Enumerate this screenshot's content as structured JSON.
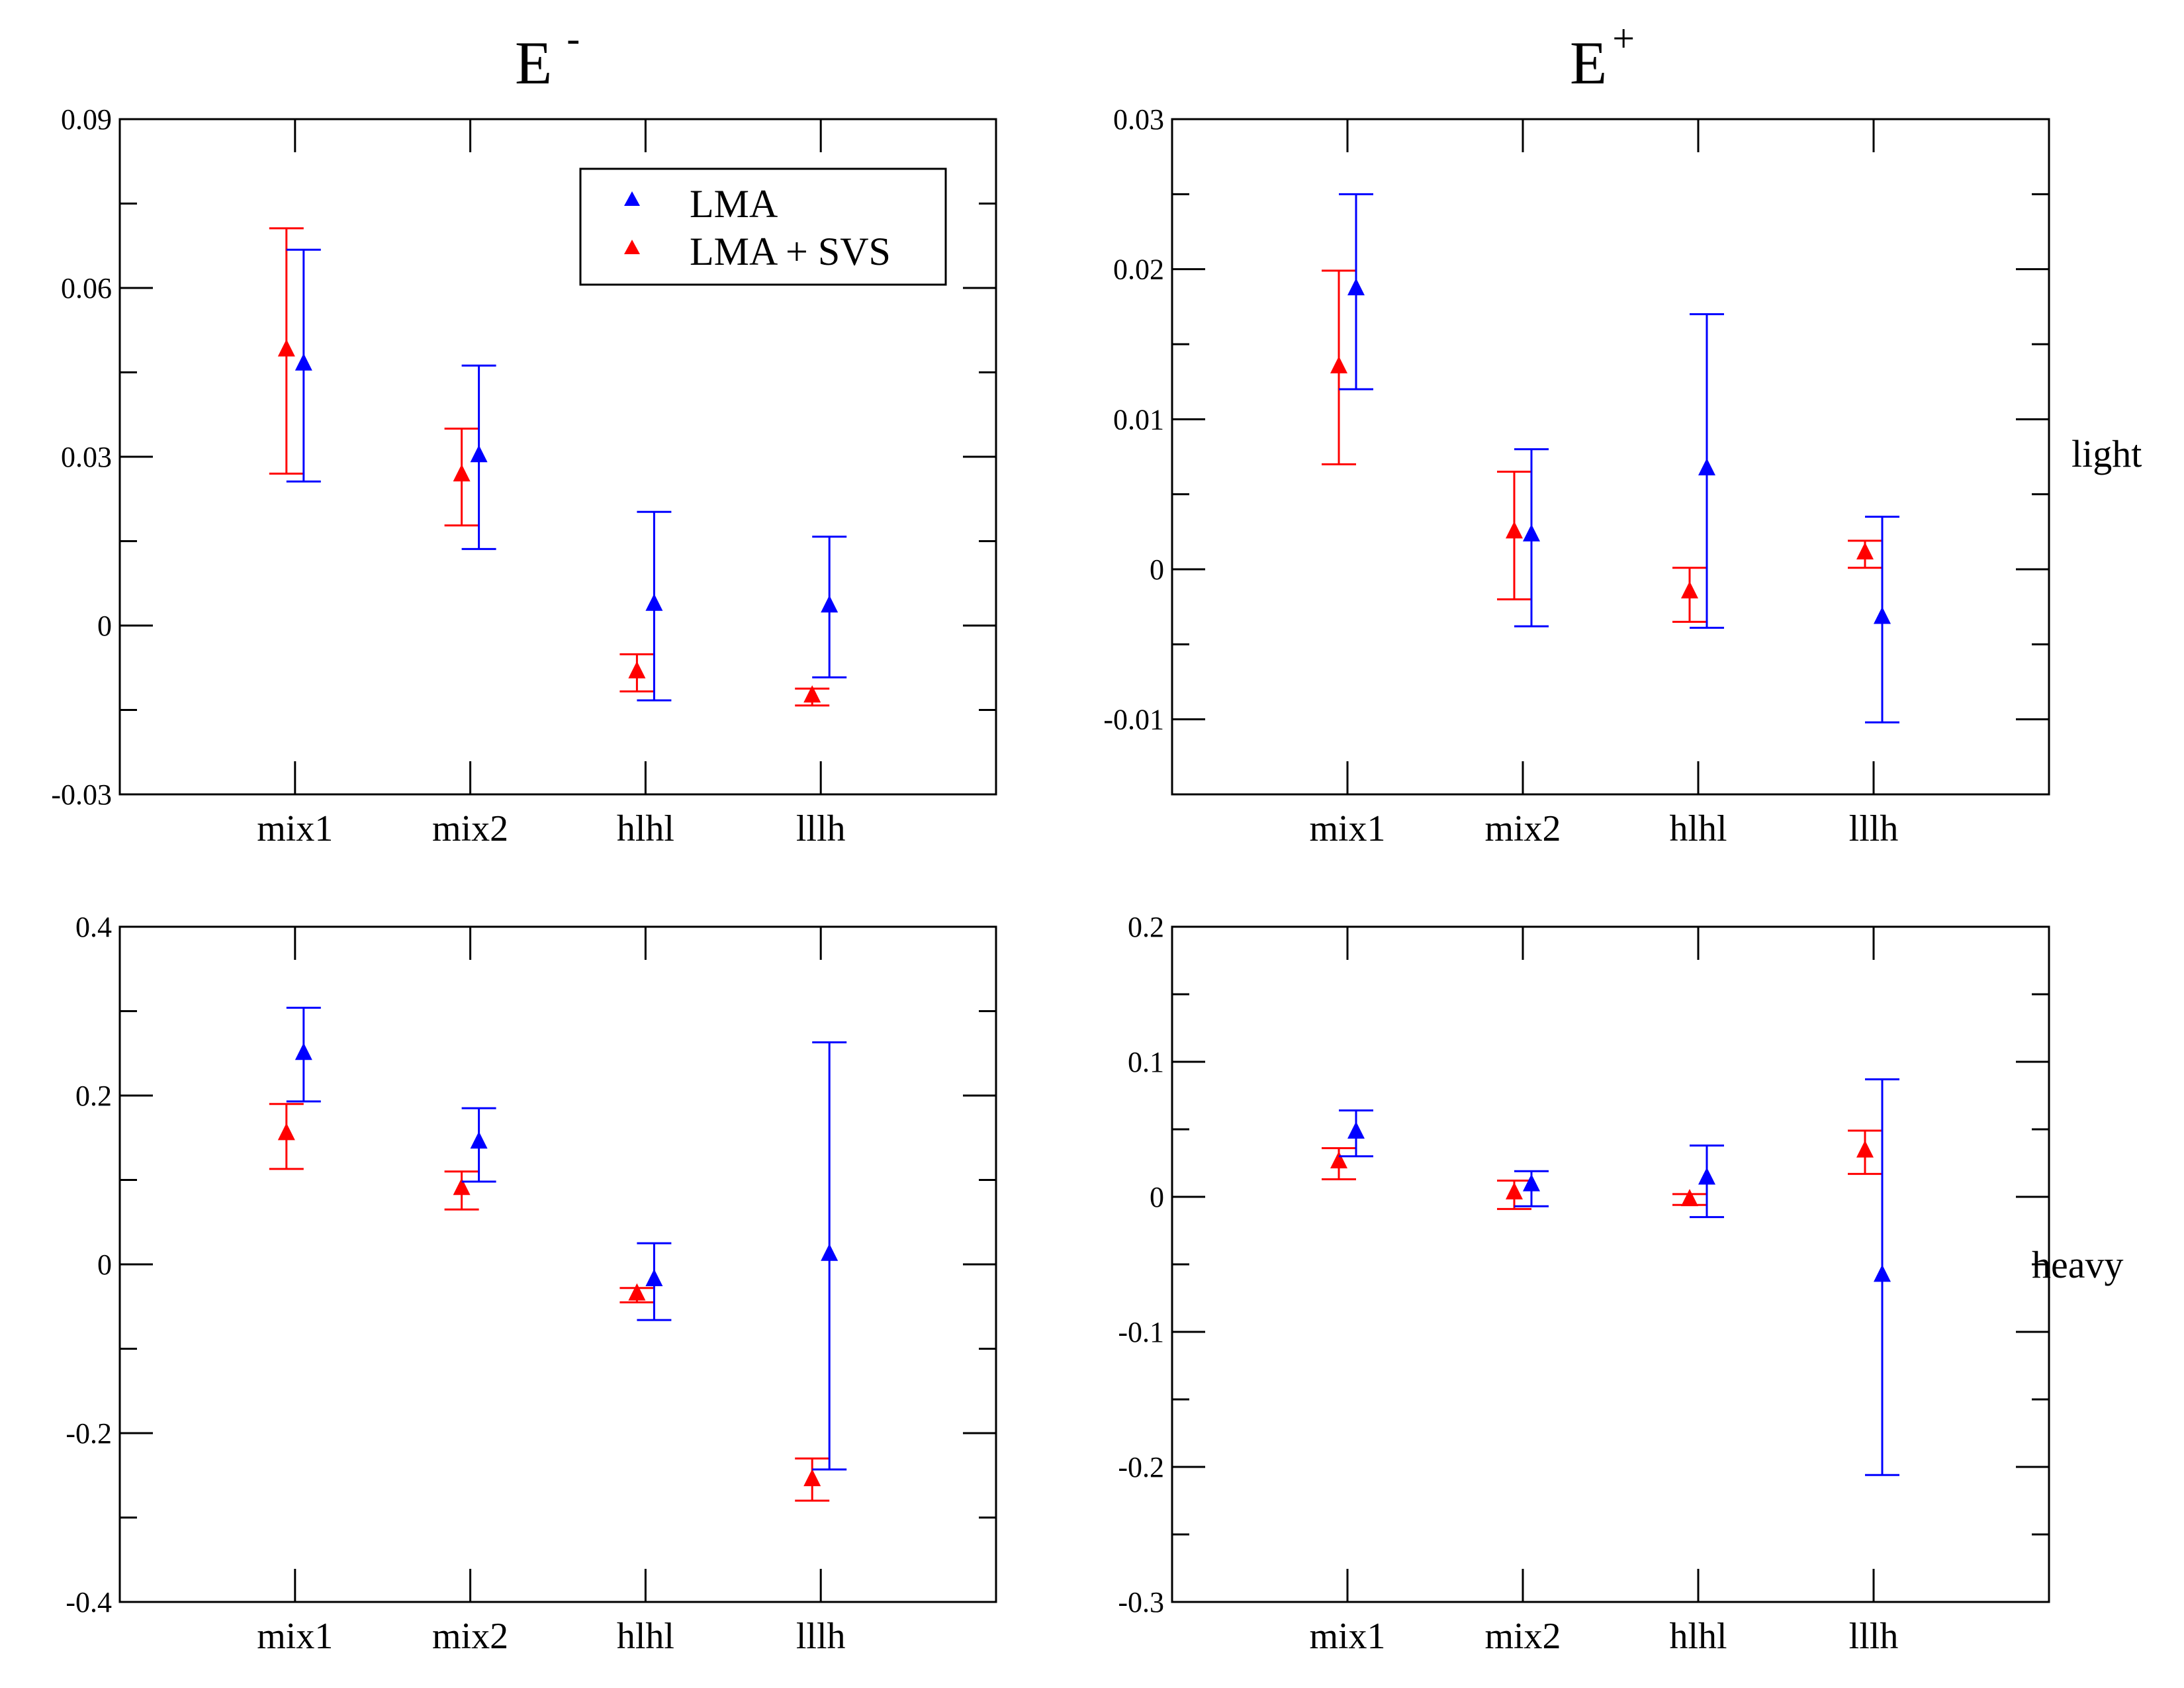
{
  "figure": {
    "column_titles": [
      {
        "base": "E",
        "sup": "-"
      },
      {
        "base": "E",
        "sup": "+"
      }
    ],
    "row_labels": [
      "light",
      "heavy"
    ],
    "legend": [
      {
        "label": "LMA",
        "color": "#0000ff"
      },
      {
        "label": "LMA + SVS",
        "color": "#ff0000"
      }
    ]
  },
  "chart_data": [
    {
      "type": "scatter",
      "panel": "E- light",
      "categories": [
        "mix1",
        "mix2",
        "hlhl",
        "lllh"
      ],
      "ylim": [
        -0.03,
        0.09
      ],
      "yticks": [
        -0.03,
        0,
        0.03,
        0.06,
        0.09
      ],
      "ytick_labels": [
        "-0.03",
        "0",
        "0.03",
        "0.06",
        "0.09"
      ],
      "yminor": 0.015,
      "series": [
        {
          "name": "LMA + SVS",
          "color": "#ff0000",
          "values": [
            0.049,
            0.0268,
            -0.0082,
            -0.0125
          ],
          "err_low": [
            0.027,
            0.0178,
            -0.0117,
            -0.0142
          ],
          "err_high": [
            0.0706,
            0.035,
            -0.0051,
            -0.0112
          ]
        },
        {
          "name": "LMA",
          "color": "#0000ff",
          "values": [
            0.0465,
            0.0302,
            0.0038,
            0.0035
          ],
          "err_low": [
            0.0256,
            0.0136,
            -0.0133,
            -0.0092
          ],
          "err_high": [
            0.0668,
            0.0462,
            0.0202,
            0.0158
          ]
        }
      ]
    },
    {
      "type": "scatter",
      "panel": "E+ light",
      "categories": [
        "mix1",
        "mix2",
        "hlhl",
        "lllh"
      ],
      "ylim": [
        -0.015,
        0.03
      ],
      "yticks": [
        -0.01,
        0,
        0.01,
        0.02,
        0.03
      ],
      "ytick_labels": [
        "-0.01",
        "0",
        "0.01",
        "0.02",
        "0.03"
      ],
      "yminor": 0.005,
      "series": [
        {
          "name": "LMA + SVS",
          "color": "#ff0000",
          "values": [
            0.0135,
            0.0025,
            -0.0015,
            0.0011
          ],
          "err_low": [
            0.007,
            -0.002,
            -0.0035,
            0.0001
          ],
          "err_high": [
            0.0199,
            0.0065,
            0.0001,
            0.0019
          ]
        },
        {
          "name": "LMA",
          "color": "#0000ff",
          "values": [
            0.0187,
            0.0023,
            0.0067,
            -0.0032
          ],
          "err_low": [
            0.012,
            -0.0038,
            -0.0039,
            -0.0102
          ],
          "err_high": [
            0.025,
            0.008,
            0.017,
            0.0035
          ]
        }
      ]
    },
    {
      "type": "scatter",
      "panel": "E- heavy",
      "categories": [
        "mix1",
        "mix2",
        "hlhl",
        "lllh"
      ],
      "ylim": [
        -0.4,
        0.4
      ],
      "yticks": [
        -0.4,
        -0.2,
        0,
        0.2,
        0.4
      ],
      "ytick_labels": [
        "-0.4",
        "-0.2",
        "0",
        "0.2",
        "0.4"
      ],
      "yminor": 0.1,
      "series": [
        {
          "name": "LMA + SVS",
          "color": "#ff0000",
          "values": [
            0.155,
            0.09,
            -0.035,
            -0.255
          ],
          "err_low": [
            0.113,
            0.065,
            -0.045,
            -0.28
          ],
          "err_high": [
            0.19,
            0.11,
            -0.028,
            -0.23
          ]
        },
        {
          "name": "LMA",
          "color": "#0000ff",
          "values": [
            0.25,
            0.145,
            -0.018,
            0.012
          ],
          "err_low": [
            0.193,
            0.098,
            -0.066,
            -0.243
          ],
          "err_high": [
            0.304,
            0.185,
            0.025,
            0.263
          ]
        }
      ]
    },
    {
      "type": "scatter",
      "panel": "E+ heavy",
      "categories": [
        "mix1",
        "mix2",
        "hlhl",
        "lllh"
      ],
      "ylim": [
        -0.3,
        0.2
      ],
      "yticks": [
        -0.3,
        -0.2,
        -0.1,
        0,
        0.1,
        0.2
      ],
      "ytick_labels": [
        "-0.3",
        "-0.2",
        "-0.1",
        "0",
        "0.1",
        "0.2"
      ],
      "yminor": 0.05,
      "series": [
        {
          "name": "LMA + SVS",
          "color": "#ff0000",
          "values": [
            0.026,
            0.003,
            -0.002,
            0.034
          ],
          "err_low": [
            0.013,
            -0.009,
            -0.006,
            0.017
          ],
          "err_high": [
            0.036,
            0.012,
            0.002,
            0.049
          ]
        },
        {
          "name": "LMA",
          "color": "#0000ff",
          "values": [
            0.048,
            0.009,
            0.014,
            -0.058
          ],
          "err_low": [
            0.03,
            -0.007,
            -0.015,
            -0.206
          ],
          "err_high": [
            0.064,
            0.019,
            0.038,
            0.087
          ]
        }
      ]
    }
  ]
}
